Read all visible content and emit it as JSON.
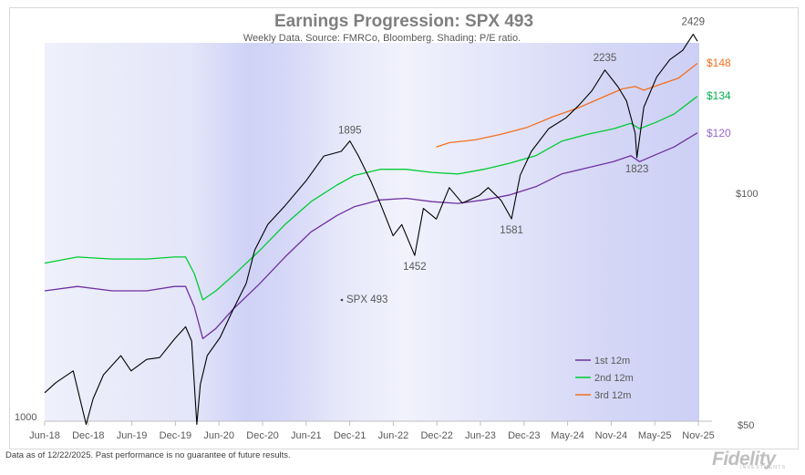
{
  "chart_data": {
    "type": "line",
    "title": "Earnings Progression: SPX 493",
    "subtitle": "Weekly Data.  Source: FMRCo, Bloomberg. Shading: P/E ratio.",
    "x_tick_labels": [
      "Jun-18",
      "Dec-18",
      "Jun-19",
      "Dec-19",
      "Jun-20",
      "Dec-20",
      "Jun-21",
      "Dec-21",
      "Jun-22",
      "Dec-22",
      "Jun-23",
      "Dec-23",
      "May-24",
      "Nov-24",
      "May-25",
      "Nov-25"
    ],
    "left_axis": {
      "scale": "log",
      "label_text": "1000",
      "value": 1000
    },
    "right_axis": {
      "scale": "log",
      "tick_labels": [
        "$100",
        "$50"
      ],
      "values": [
        100,
        50
      ]
    },
    "series": [
      {
        "name": "SPX 493",
        "color": "#000000",
        "x": [
          2018.42,
          2018.55,
          2018.75,
          2018.9,
          2018.98,
          2019.1,
          2019.3,
          2019.42,
          2019.6,
          2019.75,
          2019.92,
          2020.05,
          2020.12,
          2020.18,
          2020.22,
          2020.3,
          2020.45,
          2020.6,
          2020.75,
          2020.85,
          2021.0,
          2021.2,
          2021.45,
          2021.65,
          2021.85,
          2021.95,
          2022.05,
          2022.2,
          2022.3,
          2022.45,
          2022.55,
          2022.7,
          2022.8,
          2022.95,
          2023.1,
          2023.25,
          2023.45,
          2023.55,
          2023.7,
          2023.82,
          2023.92,
          2024.05,
          2024.25,
          2024.45,
          2024.6,
          2024.75,
          2024.9,
          2025.05,
          2025.15,
          2025.25,
          2025.27,
          2025.35,
          2025.5,
          2025.65,
          2025.8,
          2025.92,
          2025.97
        ],
        "values": [
          1055,
          1080,
          1110,
          980,
          1040,
          1100,
          1150,
          1110,
          1140,
          1145,
          1195,
          1230,
          1190,
          980,
          1075,
          1150,
          1200,
          1280,
          1360,
          1470,
          1560,
          1630,
          1730,
          1830,
          1850,
          1895,
          1830,
          1720,
          1640,
          1520,
          1560,
          1452,
          1620,
          1580,
          1700,
          1640,
          1670,
          1700,
          1650,
          1581,
          1750,
          1850,
          1950,
          2000,
          2060,
          2130,
          2235,
          2150,
          2080,
          1930,
          1823,
          2050,
          2200,
          2290,
          2340,
          2429,
          2390
        ]
      },
      {
        "name": "1st 12m",
        "color": "#7030a0",
        "x": [
          2018.42,
          2018.8,
          2019.2,
          2019.6,
          2019.92,
          2020.05,
          2020.15,
          2020.25,
          2020.4,
          2020.6,
          2020.9,
          2021.2,
          2021.5,
          2021.8,
          2022.0,
          2022.3,
          2022.6,
          2022.9,
          2023.2,
          2023.5,
          2023.8,
          2024.1,
          2024.4,
          2024.7,
          2025.0,
          2025.2,
          2025.3,
          2025.5,
          2025.7,
          2025.97
        ],
        "values": [
          74.5,
          75.5,
          74.5,
          74.5,
          75.5,
          75.5,
          71.0,
          64.5,
          66.5,
          70.5,
          76.0,
          82.5,
          89.0,
          93.5,
          96.0,
          98.0,
          98.5,
          97.5,
          97.0,
          98.0,
          99.5,
          102.0,
          106.0,
          108.0,
          110.0,
          112.0,
          110.0,
          112.5,
          115.0,
          120.0
        ]
      },
      {
        "name": "2nd 12m",
        "color": "#00cc33",
        "x": [
          2018.42,
          2018.8,
          2019.2,
          2019.6,
          2019.92,
          2020.05,
          2020.15,
          2020.25,
          2020.4,
          2020.6,
          2020.9,
          2021.2,
          2021.5,
          2021.8,
          2022.0,
          2022.3,
          2022.6,
          2022.9,
          2023.2,
          2023.5,
          2023.8,
          2024.1,
          2024.4,
          2024.7,
          2025.0,
          2025.2,
          2025.3,
          2025.5,
          2025.7,
          2025.97
        ],
        "values": [
          81.0,
          82.5,
          82.0,
          82.0,
          82.5,
          82.5,
          78.5,
          72.5,
          74.5,
          78.0,
          84.0,
          91.0,
          97.5,
          102.5,
          105.5,
          107.5,
          107.5,
          106.5,
          106.0,
          107.5,
          109.5,
          112.0,
          117.0,
          119.5,
          121.5,
          123.5,
          121.5,
          124.0,
          127.0,
          134.0
        ]
      },
      {
        "name": "3rd 12m",
        "color": "#f46f1f",
        "x": [
          2022.95,
          2023.1,
          2023.4,
          2023.7,
          2024.0,
          2024.3,
          2024.6,
          2024.9,
          2025.1,
          2025.25,
          2025.35,
          2025.55,
          2025.75,
          2025.97
        ],
        "values": [
          115.0,
          116.5,
          117.5,
          119.5,
          122.0,
          126.0,
          129.5,
          134.0,
          137.0,
          138.0,
          136.5,
          139.0,
          141.5,
          148.0
        ]
      }
    ],
    "annotations": [
      {
        "text": "1895",
        "x": 2021.95,
        "y": 1895
      },
      {
        "text": "1452",
        "x": 2022.7,
        "y": 1452
      },
      {
        "text": "1581",
        "x": 2023.82,
        "y": 1581
      },
      {
        "text": "2235",
        "x": 2024.9,
        "y": 2235
      },
      {
        "text": "1823",
        "x": 2025.27,
        "y": 1823
      },
      {
        "text": "2429",
        "x": 2025.92,
        "y": 2429
      }
    ],
    "end_labels": [
      {
        "text": "$148",
        "color": "#f46f1f"
      },
      {
        "text": "$134",
        "color": "#00b050"
      },
      {
        "text": "$120",
        "color": "#9966cc"
      }
    ],
    "series_label": "SPX 493",
    "legend": [
      {
        "name": "1st 12m",
        "color": "#7030a0"
      },
      {
        "name": "2nd 12m",
        "color": "#00cc33"
      },
      {
        "name": "3rd 12m",
        "color": "#f46f1f"
      }
    ],
    "shading": "P/E ratio (blue intensity)"
  },
  "footer": "Data as of 12/22/2025. Past performance is no guarantee of future results.",
  "logo": "Fidelity",
  "logo_sub": "INVESTMENTS"
}
